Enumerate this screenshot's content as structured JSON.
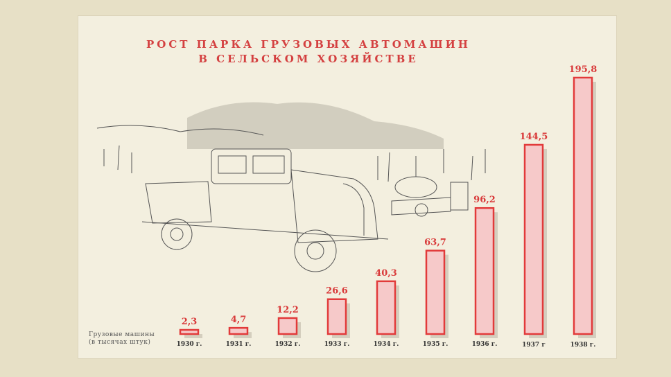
{
  "chart_data": {
    "type": "bar",
    "title_line1": "РОСТ ПАРКА ГРУЗОВЫХ АВТОМАШИН",
    "title_line2": "В СЕЛЬСКОМ ХОЗЯЙСТВЕ",
    "ylabel_line1": "Грузовые машины",
    "ylabel_line2": "(в тысячах штук)",
    "categories": [
      "1930 г.",
      "1931 г.",
      "1932 г.",
      "1933 г.",
      "1934 г.",
      "1935 г.",
      "1936 г.",
      "1937 г",
      "1938 г."
    ],
    "values": [
      2.3,
      4.7,
      12.2,
      26.6,
      40.3,
      63.7,
      96.2,
      144.5,
      195.8
    ],
    "value_labels": [
      "2,3",
      "4,7",
      "12,2",
      "26,6",
      "40,3",
      "63,7",
      "96,2",
      "144,5",
      "195,8"
    ],
    "ylim": [
      0,
      200
    ],
    "bar_color": "#f6c9c9",
    "bar_outline_color": "#e23a3a",
    "text_color": "#d93a3a",
    "grid": false,
    "legend": "none"
  }
}
